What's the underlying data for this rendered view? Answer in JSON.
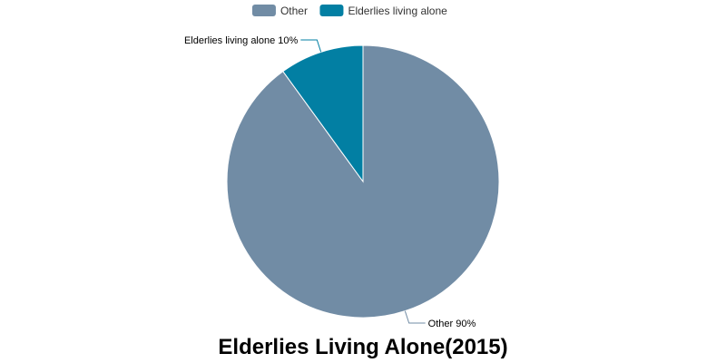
{
  "chart_data": {
    "type": "pie",
    "title": "Elderlies Living Alone(2015)",
    "legend_position": "top",
    "categories": [
      "Other",
      "Elderlies living alone"
    ],
    "values": [
      90,
      10
    ],
    "unit": "%",
    "colors": [
      "#718ca5",
      "#027fa3"
    ],
    "slice_labels": [
      "Other 90%",
      "Elderlies living alone 10%"
    ]
  }
}
